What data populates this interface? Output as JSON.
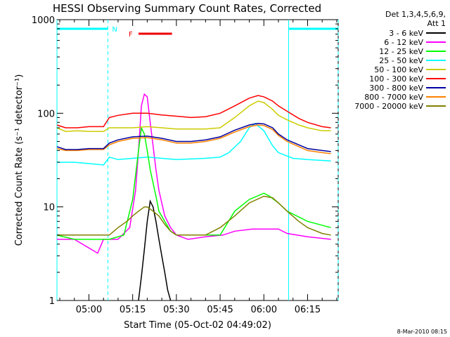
{
  "chart_data": {
    "type": "line",
    "title": "HESSI Observing Summary Count Rates, Corrected",
    "xlabel": "Start Time (05-Oct-02 04:49:02)",
    "ylabel": "Corrected Count Rate (s⁻¹ detector⁻¹)",
    "yscale": "log",
    "ylim": [
      1,
      1000
    ],
    "xlim": [
      "04:49:02",
      "06:25:30"
    ],
    "x_ticks": [
      "05:00",
      "05:15",
      "05:30",
      "05:45",
      "06:00",
      "06:15"
    ],
    "y_ticks": [
      "1",
      "10",
      "100",
      "1000"
    ],
    "grid": false,
    "legend_position": "right",
    "legend_header": [
      "Det 1,3,4,5,6,9,",
      "Att 1"
    ],
    "timestamp": "8-Mar-2010 08:15",
    "annotations": {
      "night_label": "N",
      "flare_label": "F",
      "night_intervals": [
        [
          "04:49:02",
          "05:06:30"
        ],
        [
          "06:08:30",
          "06:25:30"
        ]
      ],
      "flare_interval": [
        "05:17:00",
        "05:28:30"
      ]
    },
    "series": [
      {
        "name": "3 - 6 keV",
        "color": "#000000",
        "x": [
          "05:17",
          "05:18",
          "05:19",
          "05:20",
          "05:21",
          "05:22",
          "05:23",
          "05:24",
          "05:25",
          "05:26",
          "05:27",
          "05:28"
        ],
        "y": [
          1.0,
          1.8,
          3.5,
          7.0,
          11.5,
          10.0,
          7.0,
          4.5,
          3.0,
          2.0,
          1.3,
          1.0
        ]
      },
      {
        "name": "6 - 12 keV",
        "color": "#ff00ff",
        "x": [
          "04:49",
          "04:55",
          "05:03",
          "05:05",
          "05:07",
          "05:10",
          "05:14",
          "05:16",
          "05:17",
          "05:18",
          "05:19",
          "05:20",
          "05:21",
          "05:22",
          "05:23",
          "05:24",
          "05:25",
          "05:26",
          "05:28",
          "05:30",
          "05:34",
          "05:40",
          "05:46",
          "05:50",
          "05:56",
          "06:00",
          "06:05",
          "06:08",
          "06:15",
          "06:23"
        ],
        "y": [
          4.5,
          4.5,
          3.2,
          4.5,
          4.5,
          4.5,
          6.0,
          15,
          40,
          120,
          160,
          150,
          80,
          45,
          25,
          15,
          11,
          8,
          6,
          5,
          4.5,
          4.8,
          5,
          5.5,
          5.8,
          5.8,
          5.8,
          5.2,
          4.8,
          4.5
        ]
      },
      {
        "name": "12 - 25 keV",
        "color": "#00ff00",
        "x": [
          "04:49",
          "04:55",
          "05:00",
          "05:05",
          "05:07",
          "05:12",
          "05:15",
          "05:17",
          "05:18",
          "05:19",
          "05:20",
          "05:21",
          "05:22",
          "05:23",
          "05:24",
          "05:26",
          "05:28",
          "05:30",
          "05:35",
          "05:45",
          "05:50",
          "05:55",
          "06:00",
          "06:02",
          "06:05",
          "06:08",
          "06:15",
          "06:23"
        ],
        "y": [
          5.0,
          4.5,
          4.5,
          4.5,
          4.5,
          5.0,
          12,
          40,
          70,
          60,
          40,
          25,
          18,
          13,
          9,
          7,
          5.5,
          5.0,
          5.0,
          5.0,
          9,
          12,
          14,
          13,
          11,
          9,
          7,
          6
        ]
      },
      {
        "name": "25 - 50 keV",
        "color": "#00ffff",
        "x": [
          "04:49",
          "04:55",
          "05:00",
          "05:05",
          "05:07",
          "05:10",
          "05:15",
          "05:20",
          "05:25",
          "05:30",
          "05:40",
          "05:45",
          "05:48",
          "05:52",
          "05:55",
          "05:57",
          "06:00",
          "06:03",
          "06:05",
          "06:10",
          "06:15",
          "06:23"
        ],
        "y": [
          30,
          30,
          29,
          28,
          34,
          32,
          33,
          34,
          33,
          32,
          33,
          34,
          38,
          50,
          70,
          78,
          65,
          45,
          38,
          33,
          32,
          31
        ]
      },
      {
        "name": "50 - 100 keV",
        "color": "#cccc00",
        "x": [
          "04:49",
          "04:52",
          "04:56",
          "05:00",
          "05:05",
          "05:07",
          "05:10",
          "05:15",
          "05:20",
          "05:25",
          "05:30",
          "05:35",
          "05:40",
          "05:45",
          "05:50",
          "05:55",
          "05:58",
          "06:00",
          "06:03",
          "06:05",
          "06:08",
          "06:12",
          "06:15",
          "06:20",
          "06:23"
        ],
        "y": [
          70,
          64,
          65,
          64,
          64,
          70,
          70,
          70,
          72,
          70,
          68,
          68,
          68,
          70,
          90,
          120,
          135,
          130,
          110,
          95,
          85,
          75,
          70,
          65,
          65
        ]
      },
      {
        "name": "100 - 300 keV",
        "color": "#ff0000",
        "x": [
          "04:49",
          "04:52",
          "04:56",
          "05:00",
          "05:05",
          "05:07",
          "05:10",
          "05:15",
          "05:20",
          "05:25",
          "05:30",
          "05:35",
          "05:40",
          "05:45",
          "05:50",
          "05:55",
          "05:58",
          "06:00",
          "06:03",
          "06:05",
          "06:08",
          "06:12",
          "06:15",
          "06:20",
          "06:23"
        ],
        "y": [
          75,
          70,
          70,
          72,
          72,
          90,
          95,
          100,
          100,
          96,
          93,
          90,
          92,
          100,
          120,
          145,
          155,
          150,
          135,
          120,
          105,
          88,
          80,
          72,
          70
        ]
      },
      {
        "name": "300 - 800 keV",
        "color": "#0000a0",
        "x": [
          "04:49",
          "04:52",
          "04:56",
          "05:00",
          "05:05",
          "05:07",
          "05:10",
          "05:15",
          "05:20",
          "05:25",
          "05:30",
          "05:35",
          "05:40",
          "05:45",
          "05:50",
          "05:55",
          "05:58",
          "06:00",
          "06:03",
          "06:05",
          "06:08",
          "06:12",
          "06:15",
          "06:20",
          "06:23"
        ],
        "y": [
          44,
          41,
          41,
          42,
          42,
          48,
          52,
          56,
          57,
          54,
          50,
          50,
          52,
          56,
          66,
          75,
          78,
          77,
          70,
          60,
          52,
          46,
          42,
          40,
          39
        ]
      },
      {
        "name": "800 - 7000 keV",
        "color": "#ff8000",
        "x": [
          "04:49",
          "04:52",
          "04:56",
          "05:00",
          "05:05",
          "05:07",
          "05:10",
          "05:15",
          "05:20",
          "05:25",
          "05:30",
          "05:35",
          "05:40",
          "05:45",
          "05:50",
          "05:55",
          "05:58",
          "06:00",
          "06:03",
          "06:05",
          "06:08",
          "06:12",
          "06:15",
          "06:20",
          "06:23"
        ],
        "y": [
          42,
          40,
          40,
          41,
          41,
          46,
          50,
          54,
          55,
          52,
          48,
          48,
          50,
          54,
          63,
          72,
          75,
          74,
          67,
          58,
          50,
          44,
          40,
          38,
          37
        ]
      },
      {
        "name": "7000 - 20000 keV",
        "color": "#808000",
        "x": [
          "04:49",
          "04:55",
          "05:00",
          "05:05",
          "05:07",
          "05:10",
          "05:13",
          "05:15",
          "05:17",
          "05:19",
          "05:20",
          "05:22",
          "05:24",
          "05:26",
          "05:28",
          "05:30",
          "05:35",
          "05:40",
          "05:45",
          "05:50",
          "05:55",
          "06:00",
          "06:03",
          "06:05",
          "06:08",
          "06:12",
          "06:15",
          "06:20",
          "06:23"
        ],
        "y": [
          5,
          5,
          5,
          5,
          5,
          6,
          7,
          8,
          9,
          10,
          10,
          9,
          8,
          6.5,
          5.5,
          5,
          5,
          5,
          6,
          8,
          11,
          13,
          12.5,
          11,
          9,
          7,
          6,
          5.2,
          5
        ]
      }
    ]
  }
}
